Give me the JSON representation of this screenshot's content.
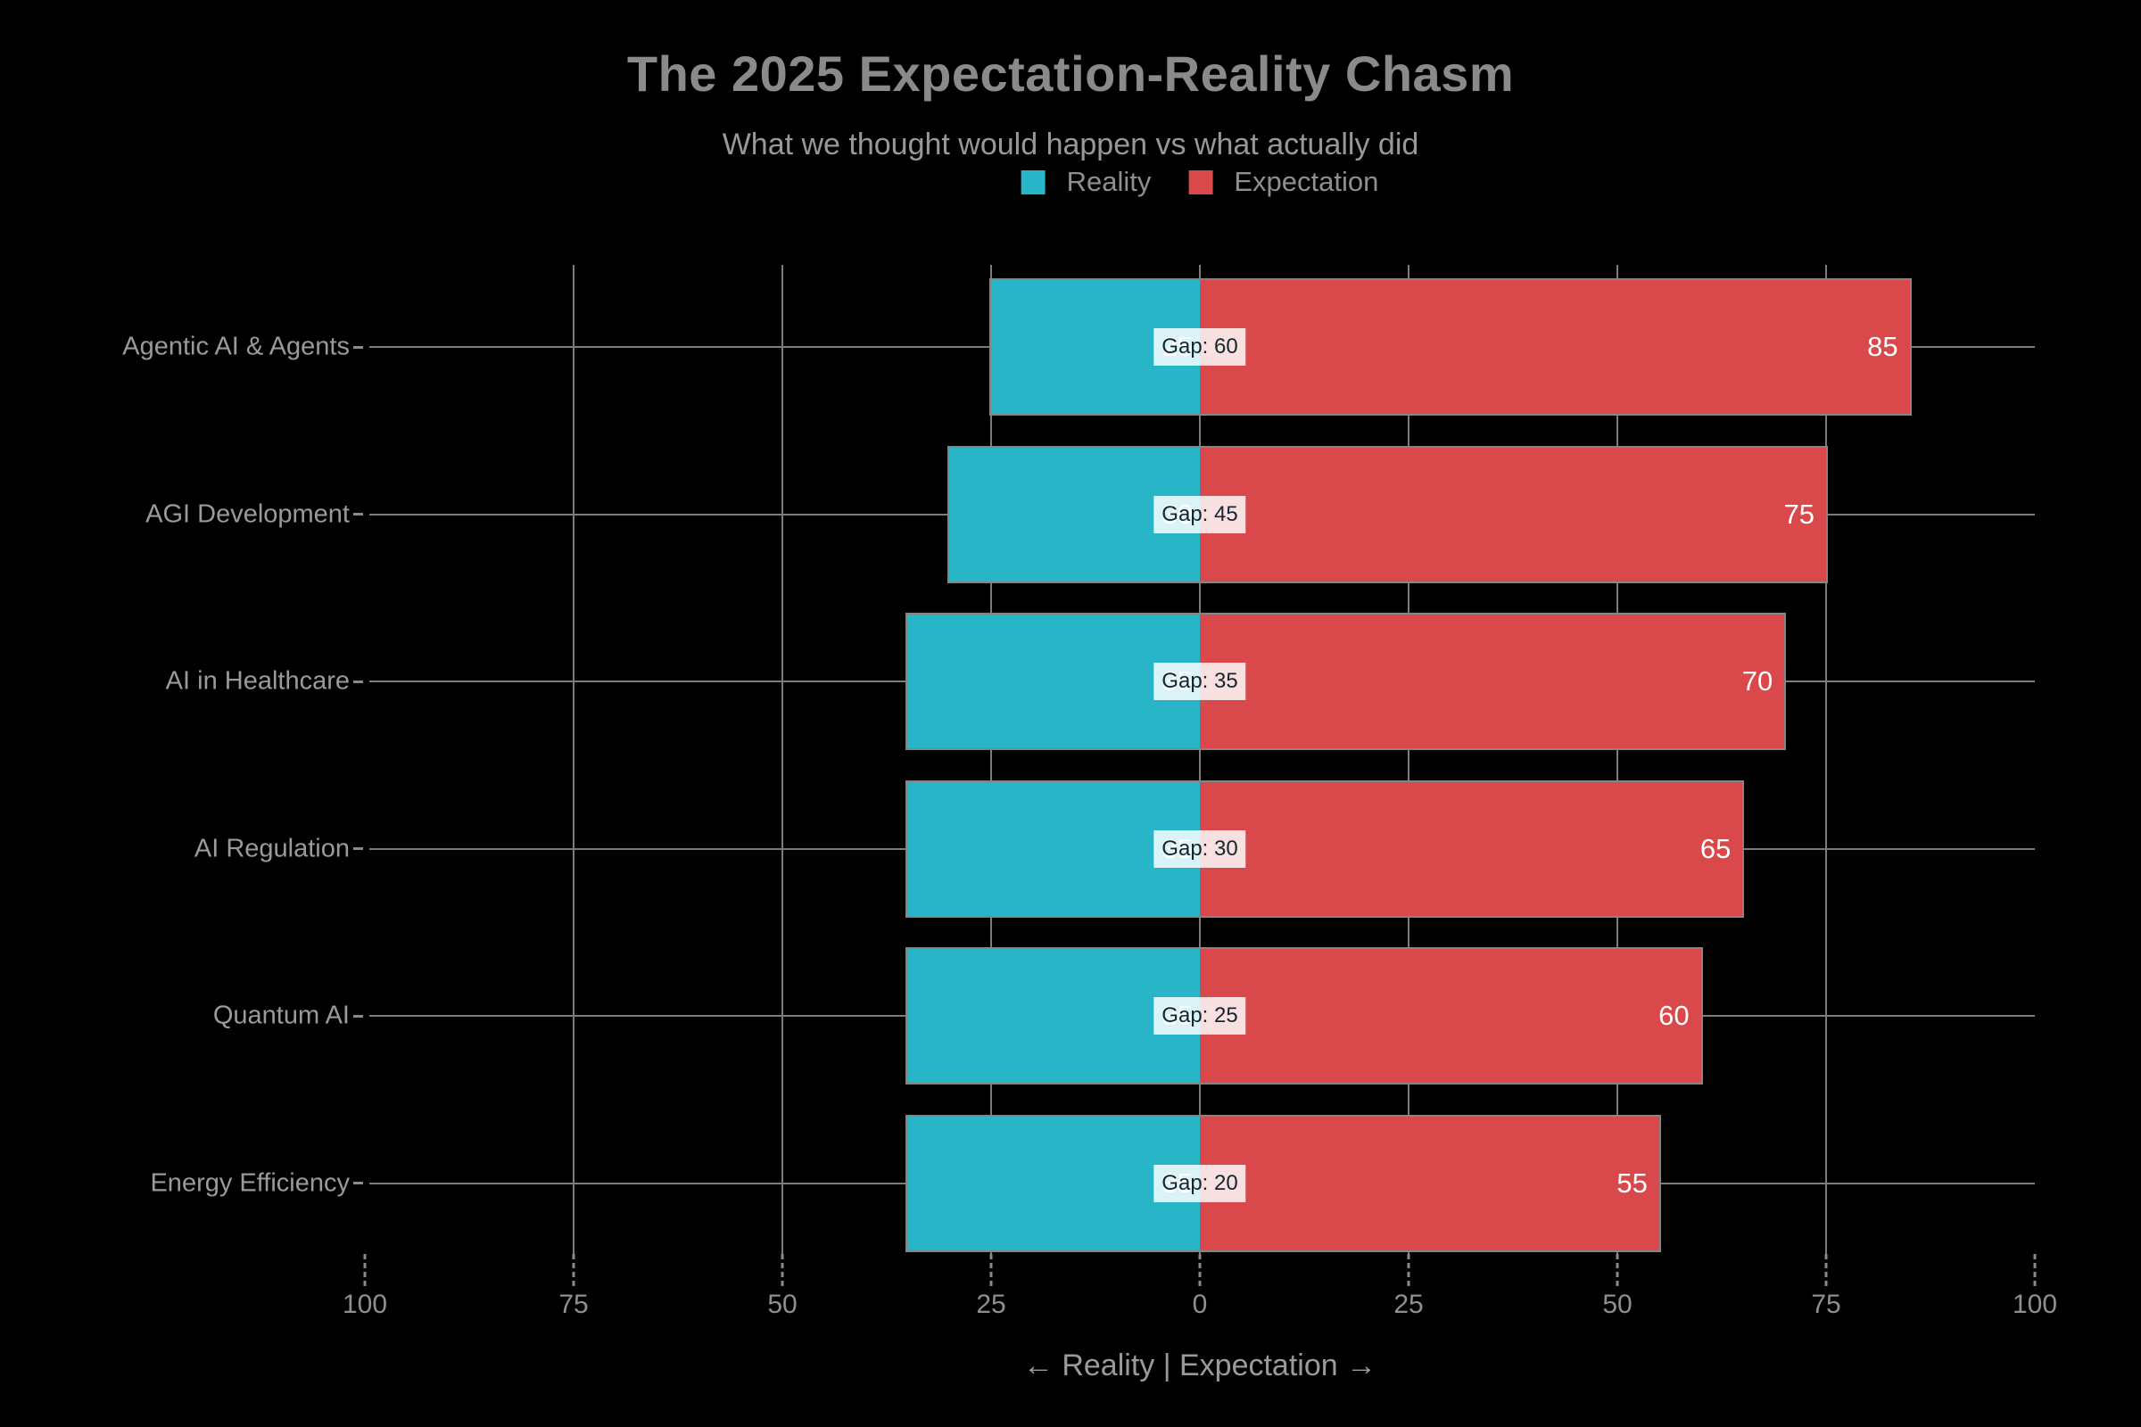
{
  "title": "The 2025 Expectation-Reality Chasm",
  "subtitle": "What we thought would happen vs what actually did",
  "xlabel": "← Reality | Expectation →",
  "legend": {
    "items": [
      {
        "label": "Reality",
        "color": "#28b5c8"
      },
      {
        "label": "Expectation",
        "color": "#d9484b"
      }
    ]
  },
  "colors": {
    "background": "#000000",
    "reality_bar": "#28b5c8",
    "expectation_bar": "#d9484b",
    "bar_border": "#858585",
    "grid": "#7c7c7c",
    "text_muted": "#9a9a9a",
    "title_text": "#8a8a8a",
    "value_text": "#ffffff",
    "gap_badge_bg": "rgba(255,255,255,0.83)",
    "gap_badge_text": "#16262e"
  },
  "chart_data": {
    "type": "bar",
    "variant": "diverging-horizontal",
    "title": "The 2025 Expectation-Reality Chasm",
    "subtitle": "What we thought would happen vs what actually did",
    "xlabel": "← Reality | Expectation →",
    "categories": [
      "Agentic AI & Agents",
      "AGI Development",
      "AI in Healthcare",
      "AI Regulation",
      "Quantum AI",
      "Energy Efficiency"
    ],
    "series": [
      {
        "name": "Reality",
        "direction": "left",
        "color": "#28b5c8",
        "values": [
          25,
          30,
          35,
          35,
          35,
          35
        ]
      },
      {
        "name": "Expectation",
        "direction": "right",
        "color": "#d9484b",
        "values": [
          85,
          75,
          70,
          65,
          60,
          55
        ]
      }
    ],
    "gaps": [
      60,
      45,
      35,
      30,
      25,
      20
    ],
    "gap_labels": [
      "Gap: 60",
      "Gap: 45",
      "Gap: 35",
      "Gap: 30",
      "Gap: 25",
      "Gap: 20"
    ],
    "expectation_value_labels": [
      "85",
      "75",
      "70",
      "65",
      "60",
      "55"
    ],
    "reality_value_labels": [
      "25",
      "30",
      "35",
      "35",
      "35",
      "35"
    ],
    "xlim": [
      -100,
      100
    ],
    "x_ticks": [
      -100,
      -75,
      -50,
      -25,
      0,
      25,
      50,
      75,
      100
    ],
    "x_tick_labels": [
      "100",
      "75",
      "50",
      "25",
      "0",
      "25",
      "50",
      "75",
      "100"
    ],
    "x_grid_values": [
      -75,
      -50,
      -25,
      0,
      25,
      50,
      75
    ],
    "grid": true,
    "legend_position": "top-center"
  }
}
